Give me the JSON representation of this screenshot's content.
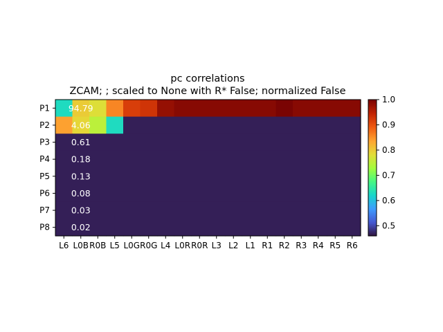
{
  "chart_data": {
    "type": "heatmap",
    "title": "pc correlations",
    "subtitle": "ZCAM; ; scaled to None with R* False; normalized False",
    "x_labels": [
      "L6",
      "L0B",
      "R0B",
      "L5",
      "L0G",
      "R0G",
      "L4",
      "L0R",
      "R0R",
      "L3",
      "L2",
      "L1",
      "R1",
      "R2",
      "R3",
      "R4",
      "R5",
      "R6"
    ],
    "y_labels": [
      "P1",
      "P2",
      "P3",
      "P4",
      "P5",
      "P6",
      "P7",
      "P8"
    ],
    "values": [
      [
        0.63,
        0.8,
        0.78,
        0.86,
        0.92,
        0.93,
        0.98,
        0.99,
        0.99,
        0.99,
        0.99,
        0.99,
        0.99,
        1.0,
        0.99,
        0.99,
        0.99,
        0.99
      ],
      [
        0.84,
        0.79,
        0.75,
        0.63,
        0.47,
        0.47,
        0.47,
        0.47,
        0.47,
        0.47,
        0.47,
        0.47,
        0.47,
        0.47,
        0.47,
        0.47,
        0.47,
        0.47
      ],
      [
        0.47,
        0.47,
        0.47,
        0.47,
        0.47,
        0.47,
        0.47,
        0.47,
        0.47,
        0.47,
        0.47,
        0.47,
        0.47,
        0.47,
        0.47,
        0.47,
        0.47,
        0.47
      ],
      [
        0.47,
        0.47,
        0.47,
        0.47,
        0.47,
        0.47,
        0.47,
        0.47,
        0.47,
        0.47,
        0.47,
        0.47,
        0.47,
        0.47,
        0.47,
        0.47,
        0.47,
        0.47
      ],
      [
        0.47,
        0.47,
        0.47,
        0.47,
        0.47,
        0.47,
        0.47,
        0.47,
        0.47,
        0.47,
        0.47,
        0.47,
        0.47,
        0.47,
        0.47,
        0.47,
        0.47,
        0.47
      ],
      [
        0.47,
        0.47,
        0.47,
        0.47,
        0.47,
        0.47,
        0.47,
        0.47,
        0.47,
        0.47,
        0.47,
        0.47,
        0.47,
        0.47,
        0.47,
        0.47,
        0.47,
        0.47
      ],
      [
        0.47,
        0.47,
        0.47,
        0.47,
        0.47,
        0.47,
        0.47,
        0.47,
        0.47,
        0.47,
        0.47,
        0.47,
        0.47,
        0.47,
        0.47,
        0.47,
        0.47,
        0.47
      ],
      [
        0.47,
        0.47,
        0.47,
        0.47,
        0.47,
        0.47,
        0.47,
        0.47,
        0.47,
        0.47,
        0.47,
        0.47,
        0.47,
        0.47,
        0.47,
        0.47,
        0.47,
        0.47
      ]
    ],
    "annotations": [
      {
        "row": 0,
        "col": 1,
        "text": "94.79"
      },
      {
        "row": 1,
        "col": 1,
        "text": "4.06"
      },
      {
        "row": 2,
        "col": 1,
        "text": "0.61"
      },
      {
        "row": 3,
        "col": 1,
        "text": "0.18"
      },
      {
        "row": 4,
        "col": 1,
        "text": "0.13"
      },
      {
        "row": 5,
        "col": 1,
        "text": "0.08"
      },
      {
        "row": 6,
        "col": 1,
        "text": "0.03"
      },
      {
        "row": 7,
        "col": 1,
        "text": "0.02"
      }
    ],
    "colormap": "turbo",
    "colorbar": {
      "range": [
        0.46,
        1.0
      ],
      "ticks": [
        0.5,
        0.6,
        0.7,
        0.8,
        0.9,
        1.0
      ],
      "tick_labels": [
        "0.5",
        "0.6",
        "0.7",
        "0.8",
        "0.9",
        "1.0"
      ]
    },
    "grid": false,
    "legend": "colorbar-right"
  }
}
